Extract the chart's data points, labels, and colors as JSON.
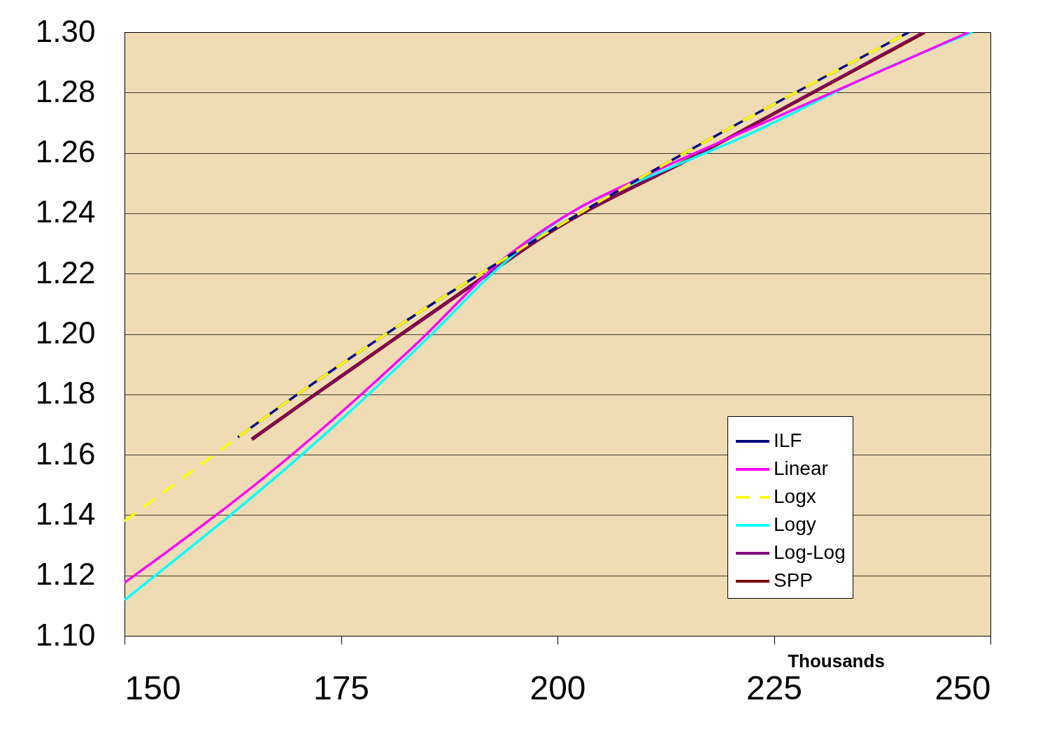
{
  "chart_data": {
    "type": "line",
    "xlabel": "Thousands",
    "xlim": [
      150,
      250
    ],
    "xticks": [
      150,
      175,
      200,
      225,
      250
    ],
    "ylim": [
      1.1,
      1.3
    ],
    "yticks": [
      {
        "value": 1.1,
        "label": "1.10"
      },
      {
        "value": 1.12,
        "label": "1.12"
      },
      {
        "value": 1.14,
        "label": "1.14"
      },
      {
        "value": 1.16,
        "label": "1.16"
      },
      {
        "value": 1.18,
        "label": "1.18"
      },
      {
        "value": 1.2,
        "label": "1.20"
      },
      {
        "value": 1.22,
        "label": "1.22"
      },
      {
        "value": 1.24,
        "label": "1.24"
      },
      {
        "value": 1.26,
        "label": "1.26"
      },
      {
        "value": 1.28,
        "label": "1.28"
      },
      {
        "value": 1.3,
        "label": "1.30"
      }
    ],
    "grid": "y",
    "legend": "bottom right",
    "series": [
      {
        "name": "ILF",
        "color": "#000080",
        "line_style": "solid",
        "x": [
          163.1,
          169.0,
          180.9,
          198.5,
          240.6
        ],
        "values": [
          1.1658,
          1.178,
          1.2013,
          1.233,
          1.3
        ]
      },
      {
        "name": "Linear",
        "color": "#ff00ff",
        "line_style": "solid",
        "x": [
          150,
          167.9,
          184.1,
          193.8,
          198.5,
          202.7,
          208.3,
          222.1,
          247.5
        ],
        "values": [
          1.1176,
          1.1566,
          1.1978,
          1.2249,
          1.2347,
          1.2421,
          1.25,
          1.2678,
          1.3
        ]
      },
      {
        "name": "Logx",
        "color": "#ffff00",
        "line_style": "dashed",
        "x": [
          150,
          159.9,
          163.1,
          169.0,
          180.9,
          198.5,
          240.6
        ],
        "values": [
          1.138,
          1.159,
          1.1658,
          1.178,
          1.2013,
          1.233,
          1.3
        ]
      },
      {
        "name": "Logy",
        "color": "#00ffff",
        "line_style": "solid",
        "x": [
          150,
          175.2,
          185.7,
          193.0,
          198.5,
          202.7,
          209.9,
          221.6,
          236.6,
          247.9
        ],
        "values": [
          1.1118,
          1.1721,
          1.2006,
          1.2214,
          1.2342,
          1.2421,
          1.2513,
          1.2655,
          1.2863,
          1.3
        ]
      },
      {
        "name": "Log-Log",
        "color": "#800080",
        "line_style": "solid",
        "x": [
          164.7,
          170.4,
          180.9,
          192.2,
          198.5,
          216.4,
          242.2
        ],
        "values": [
          1.1651,
          1.1767,
          1.1978,
          1.2203,
          1.2326,
          1.2597,
          1.3
        ]
      },
      {
        "name": "SPP",
        "color": "#800000",
        "line_style": "solid",
        "x": [
          164.7,
          170.4,
          180.9,
          192.2,
          198.5,
          216.4,
          242.4
        ],
        "values": [
          1.1651,
          1.1767,
          1.1978,
          1.2203,
          1.2326,
          1.2597,
          1.3
        ]
      }
    ]
  }
}
